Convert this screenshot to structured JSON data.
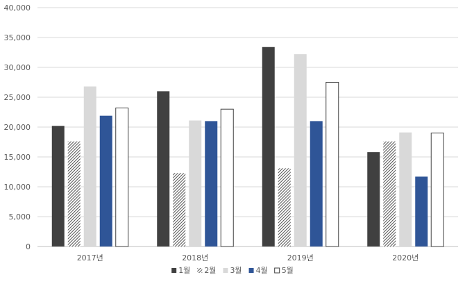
{
  "chart_data": {
    "type": "bar",
    "title": "",
    "xlabel": "",
    "ylabel": "",
    "categories": [
      "2017년",
      "2018년",
      "2019년",
      "2020년"
    ],
    "ylim": [
      0,
      40000
    ],
    "yticks": [
      0,
      5000,
      10000,
      15000,
      20000,
      25000,
      30000,
      35000,
      40000
    ],
    "ytick_labels": [
      "0",
      "5,000",
      "10,000",
      "15,000",
      "20,000",
      "25,000",
      "30,000",
      "35,000",
      "40,000"
    ],
    "grid": true,
    "legend_position": "bottom",
    "series": [
      {
        "name": "1월",
        "values": [
          20200,
          26000,
          33400,
          15800
        ],
        "color": "#404040",
        "pattern": "solid"
      },
      {
        "name": "2월",
        "values": [
          17600,
          12300,
          13100,
          17600
        ],
        "color": "#595959",
        "pattern": "hatch"
      },
      {
        "name": "3월",
        "values": [
          26800,
          21100,
          32200,
          19100
        ],
        "color": "#d9d9d9",
        "pattern": "solid"
      },
      {
        "name": "4월",
        "values": [
          21900,
          21000,
          21000,
          11700
        ],
        "color": "#2f5597",
        "pattern": "solid"
      },
      {
        "name": "5월",
        "values": [
          23200,
          23000,
          27500,
          19000
        ],
        "color": "#ffffff",
        "pattern": "outline"
      }
    ]
  }
}
